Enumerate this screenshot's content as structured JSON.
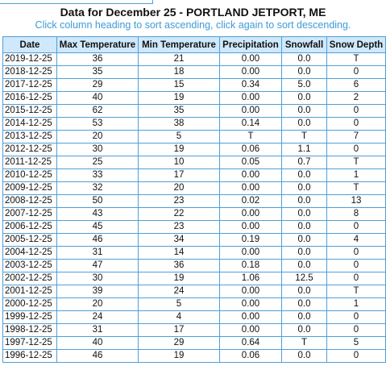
{
  "page": {
    "title": "Data for December 25 - PORTLAND JETPORT, ME",
    "subtitle": "Click column heading to sort ascending, click again to sort descending."
  },
  "table": {
    "columns": [
      "Date",
      "Max Temperature",
      "Min Temperature",
      "Precipitation",
      "Snowfall",
      "Snow Depth"
    ],
    "rows": [
      [
        "2019-12-25",
        "36",
        "21",
        "0.00",
        "0.0",
        "T"
      ],
      [
        "2018-12-25",
        "35",
        "18",
        "0.00",
        "0.0",
        "0"
      ],
      [
        "2017-12-25",
        "29",
        "15",
        "0.34",
        "5.0",
        "6"
      ],
      [
        "2016-12-25",
        "40",
        "19",
        "0.00",
        "0.0",
        "2"
      ],
      [
        "2015-12-25",
        "62",
        "35",
        "0.00",
        "0.0",
        "0"
      ],
      [
        "2014-12-25",
        "53",
        "38",
        "0.14",
        "0.0",
        "0"
      ],
      [
        "2013-12-25",
        "20",
        "5",
        "T",
        "T",
        "7"
      ],
      [
        "2012-12-25",
        "30",
        "19",
        "0.06",
        "1.1",
        "0"
      ],
      [
        "2011-12-25",
        "25",
        "10",
        "0.05",
        "0.7",
        "T"
      ],
      [
        "2010-12-25",
        "33",
        "17",
        "0.00",
        "0.0",
        "1"
      ],
      [
        "2009-12-25",
        "32",
        "20",
        "0.00",
        "0.0",
        "T"
      ],
      [
        "2008-12-25",
        "50",
        "23",
        "0.02",
        "0.0",
        "13"
      ],
      [
        "2007-12-25",
        "43",
        "22",
        "0.00",
        "0.0",
        "8"
      ],
      [
        "2006-12-25",
        "45",
        "23",
        "0.00",
        "0.0",
        "0"
      ],
      [
        "2005-12-25",
        "46",
        "34",
        "0.19",
        "0.0",
        "4"
      ],
      [
        "2004-12-25",
        "31",
        "14",
        "0.00",
        "0.0",
        "0"
      ],
      [
        "2003-12-25",
        "47",
        "36",
        "0.18",
        "0.0",
        "0"
      ],
      [
        "2002-12-25",
        "30",
        "19",
        "1.06",
        "12.5",
        "0"
      ],
      [
        "2001-12-25",
        "39",
        "24",
        "0.00",
        "0.0",
        "T"
      ],
      [
        "2000-12-25",
        "20",
        "5",
        "0.00",
        "0.0",
        "1"
      ],
      [
        "1999-12-25",
        "24",
        "4",
        "0.00",
        "0.0",
        "0"
      ],
      [
        "1998-12-25",
        "31",
        "17",
        "0.00",
        "0.0",
        "0"
      ],
      [
        "1997-12-25",
        "40",
        "29",
        "0.64",
        "T",
        "5"
      ],
      [
        "1996-12-25",
        "46",
        "19",
        "0.06",
        "0.0",
        "0"
      ]
    ]
  },
  "colors": {
    "border": "#4f9fd7",
    "header_bg": "#cfe8fb",
    "subtitle": "#3d9bd6"
  }
}
